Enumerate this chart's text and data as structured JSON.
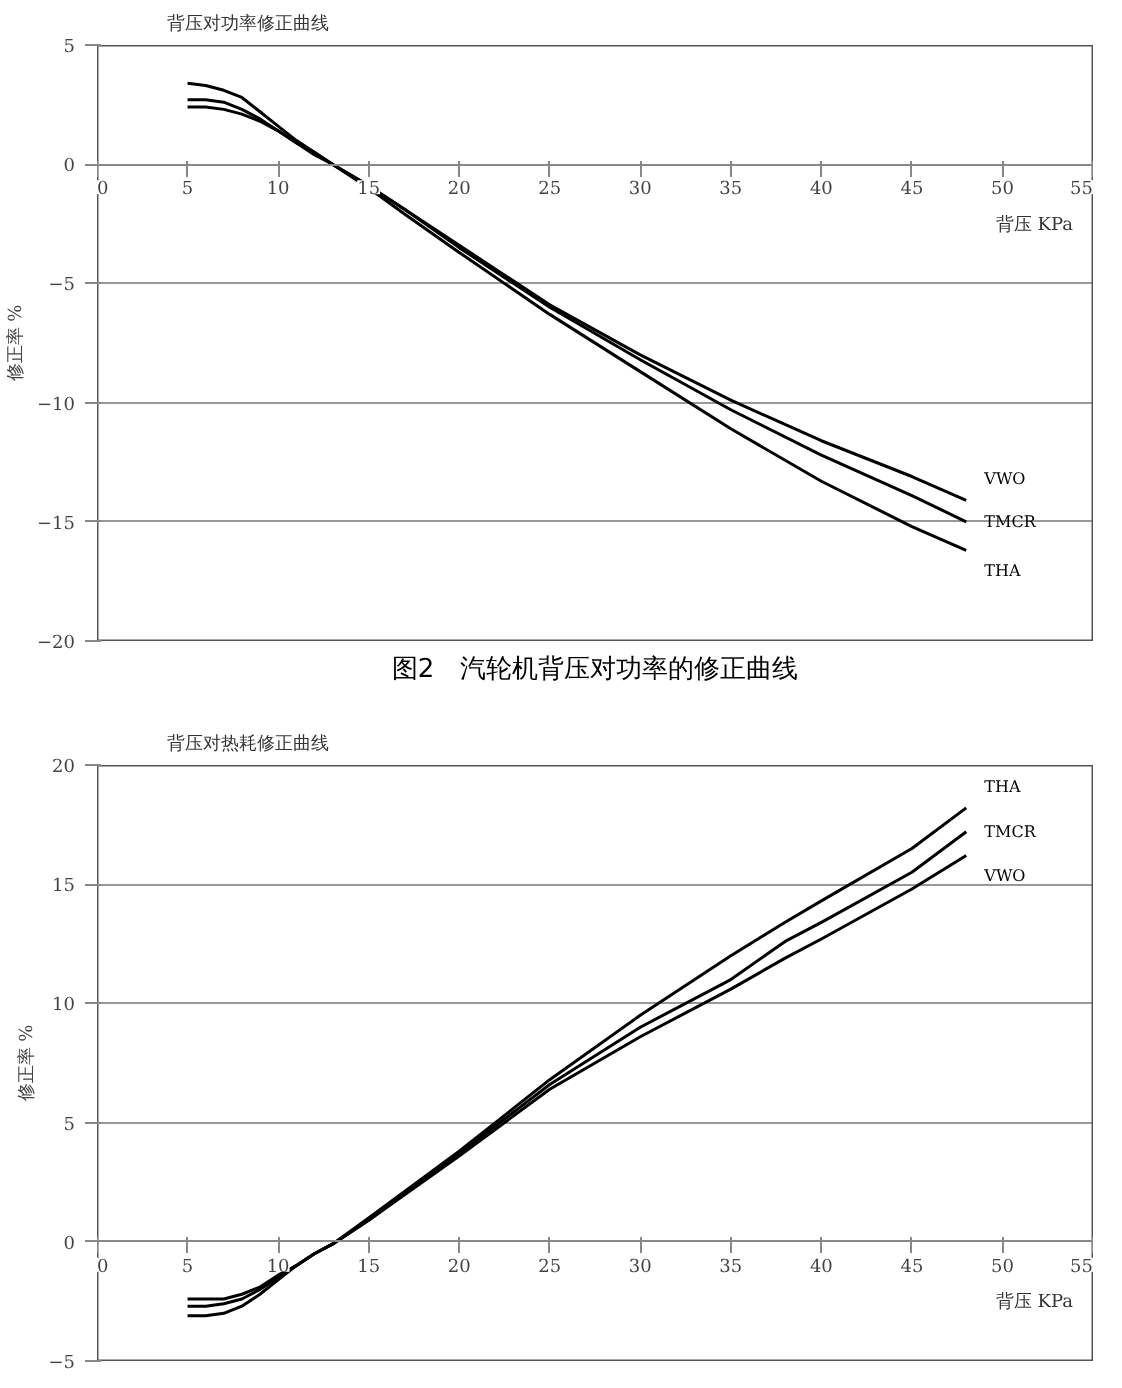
{
  "chart_data": [
    {
      "type": "line",
      "title": "背压对功率修正曲线",
      "xlabel": "背压 KPa",
      "ylabel": "修正率 %",
      "annotations": [
        "图2　汽轮机背压对功率的修正曲线"
      ],
      "xlim": [
        0,
        55
      ],
      "xticks": [
        0,
        5,
        10,
        15,
        20,
        25,
        30,
        35,
        40,
        45,
        50,
        55
      ],
      "ylim": [
        -20,
        5
      ],
      "yticks": [
        -20,
        -15,
        -10,
        -5,
        0,
        5
      ],
      "grid": "y",
      "x": [
        5,
        6,
        7,
        8,
        9,
        10,
        11,
        12,
        13,
        15,
        17,
        20,
        25,
        30,
        35,
        40,
        45,
        48
      ],
      "series": [
        {
          "name": "THA",
          "color": "#000000",
          "values": [
            3.4,
            3.3,
            3.1,
            2.8,
            2.2,
            1.6,
            1.0,
            0.5,
            0,
            -1.0,
            -2.1,
            -3.7,
            -6.3,
            -8.7,
            -11.1,
            -13.3,
            -15.2,
            -16.2
          ]
        },
        {
          "name": "TMCR",
          "color": "#000000",
          "values": [
            2.7,
            2.7,
            2.6,
            2.3,
            1.9,
            1.4,
            0.9,
            0.5,
            0,
            -0.9,
            -1.9,
            -3.5,
            -6.0,
            -8.2,
            -10.3,
            -12.2,
            -13.9,
            -15.0
          ]
        },
        {
          "name": "VWO",
          "color": "#000000",
          "values": [
            2.4,
            2.4,
            2.3,
            2.1,
            1.8,
            1.4,
            0.9,
            0.4,
            0,
            -0.9,
            -1.9,
            -3.4,
            -5.9,
            -8.0,
            -9.9,
            -11.6,
            -13.1,
            -14.1
          ]
        }
      ]
    },
    {
      "type": "line",
      "title": "背压对热耗修正曲线",
      "xlabel": "背压 KPa",
      "ylabel": "修正率 %",
      "xlim": [
        0,
        55
      ],
      "xticks": [
        0,
        5,
        10,
        15,
        20,
        25,
        30,
        35,
        40,
        45,
        50,
        55
      ],
      "ylim": [
        -5,
        20
      ],
      "yticks": [
        -5,
        0,
        5,
        10,
        15,
        20
      ],
      "grid": "y",
      "x": [
        5,
        6,
        7,
        8,
        9,
        10,
        11,
        12,
        13,
        15,
        20,
        25,
        30,
        35,
        38,
        40,
        45,
        48
      ],
      "series": [
        {
          "name": "THA",
          "color": "#000000",
          "values": [
            -3.1,
            -3.1,
            -3.0,
            -2.7,
            -2.2,
            -1.6,
            -1.0,
            -0.5,
            -0.1,
            1.0,
            3.8,
            6.8,
            9.5,
            12.0,
            13.4,
            14.3,
            16.5,
            18.2
          ]
        },
        {
          "name": "TMCR",
          "color": "#000000",
          "values": [
            -2.7,
            -2.7,
            -2.6,
            -2.4,
            -2.0,
            -1.5,
            -1.0,
            -0.5,
            -0.1,
            0.9,
            3.7,
            6.6,
            9.0,
            11.0,
            12.6,
            13.4,
            15.5,
            17.2
          ]
        },
        {
          "name": "VWO",
          "color": "#000000",
          "values": [
            -2.4,
            -2.4,
            -2.4,
            -2.2,
            -1.9,
            -1.4,
            -1.0,
            -0.5,
            -0.1,
            0.9,
            3.6,
            6.4,
            8.6,
            10.6,
            11.9,
            12.7,
            14.8,
            16.2
          ]
        }
      ]
    }
  ]
}
